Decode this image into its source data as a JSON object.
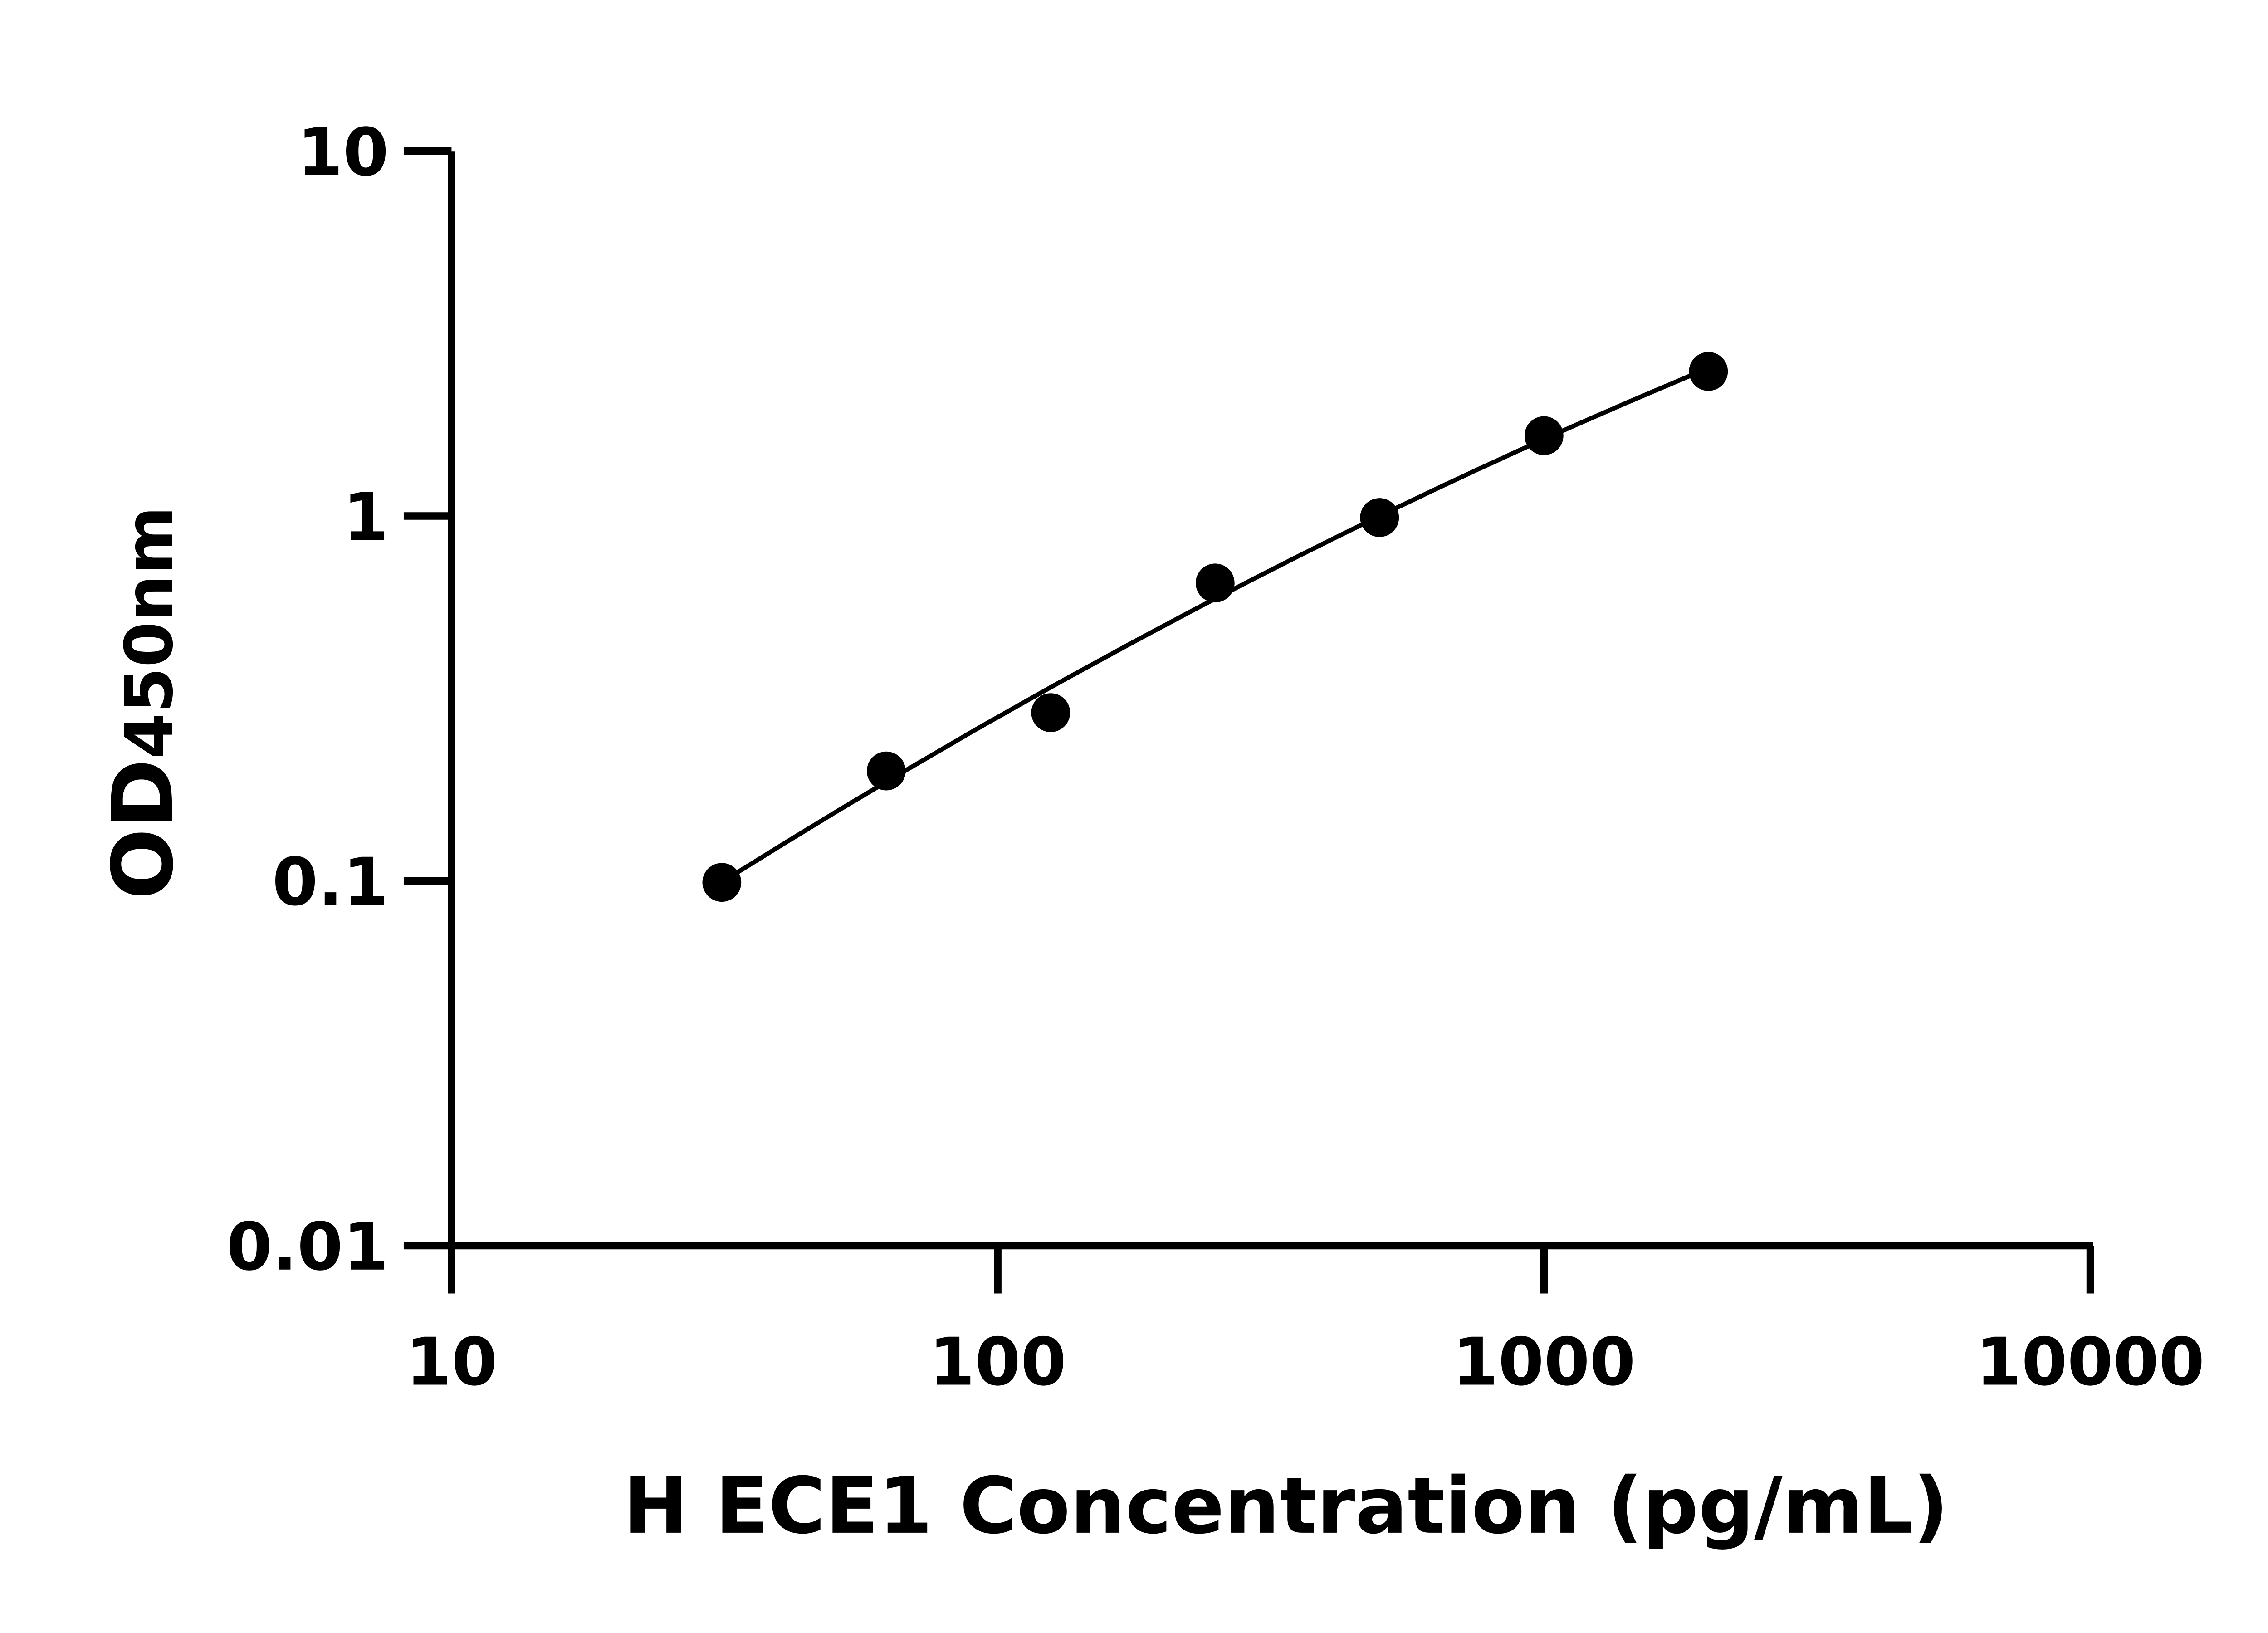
{
  "chart_data": {
    "type": "scatter",
    "title": "",
    "xlabel": "H ECE1 Concentration (pg/mL)",
    "ylabel_main": "OD",
    "ylabel_sub": "450nm",
    "x_scale": "log",
    "y_scale": "log",
    "xlim": [
      10,
      10000
    ],
    "ylim": [
      0.01,
      10
    ],
    "x_ticks": [
      "10",
      "100",
      "1000",
      "10000"
    ],
    "y_ticks": [
      "0.01",
      "0.1",
      "1",
      "10"
    ],
    "grid": false,
    "legend": "none",
    "fit_line": true,
    "marker_color": "#000000",
    "points": [
      {
        "x": 31.25,
        "y": 0.099
      },
      {
        "x": 62.5,
        "y": 0.2
      },
      {
        "x": 125,
        "y": 0.289
      },
      {
        "x": 250,
        "y": 0.655
      },
      {
        "x": 500,
        "y": 0.99
      },
      {
        "x": 1000,
        "y": 1.66
      },
      {
        "x": 2000,
        "y": 2.49
      }
    ]
  }
}
